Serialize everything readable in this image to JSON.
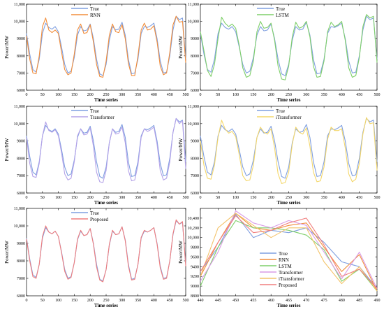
{
  "panels": [
    {
      "type": "line",
      "xlabel": "Time series",
      "ylabel": "Power/MW",
      "xlim": [
        0,
        500
      ],
      "ylim": [
        6000,
        11000
      ],
      "xticks": [
        "0",
        "50",
        "100",
        "150",
        "200",
        "250",
        "300",
        "350",
        "400",
        "450",
        "500"
      ],
      "yticks": [
        "6000",
        "7000",
        "8000",
        "9000",
        "10,000",
        "11,000"
      ],
      "legend": "top-center",
      "series": [
        {
          "name": "True",
          "color": "#7f9fe0",
          "src": "true"
        },
        {
          "name": "RNN",
          "color": "#f28e3c",
          "src": "rnn"
        }
      ]
    },
    {
      "type": "line",
      "xlabel": "Time series",
      "ylabel": "Power/MW",
      "xlim": [
        0,
        500
      ],
      "ylim": [
        6000,
        11000
      ],
      "xticks": [
        "0",
        "50",
        "100",
        "150",
        "200",
        "250",
        "300",
        "350",
        "400",
        "450",
        "500"
      ],
      "yticks": [
        "6000",
        "7000",
        "8000",
        "9000",
        "10,000",
        "11,000"
      ],
      "legend": "top-center",
      "series": [
        {
          "name": "True",
          "color": "#7f9fe0",
          "src": "true"
        },
        {
          "name": "LSTM",
          "color": "#7fcf6a",
          "src": "lstm"
        }
      ]
    },
    {
      "type": "line",
      "xlabel": "Time series",
      "ylabel": "Power/MW",
      "xlim": [
        0,
        500
      ],
      "ylim": [
        6000,
        11000
      ],
      "xticks": [
        "0",
        "50",
        "100",
        "150",
        "200",
        "250",
        "300",
        "350",
        "400",
        "450",
        "500"
      ],
      "yticks": [
        "6000",
        "7000",
        "8000",
        "9000",
        "10,000",
        "11,000"
      ],
      "legend": "top-center",
      "series": [
        {
          "name": "True",
          "color": "#7f9fe0",
          "src": "true"
        },
        {
          "name": "Transformer",
          "color": "#b4a2e8",
          "src": "transformer"
        }
      ]
    },
    {
      "type": "line",
      "xlabel": "Time series",
      "ylabel": "Power/MW",
      "xlim": [
        0,
        500
      ],
      "ylim": [
        6000,
        11000
      ],
      "xticks": [
        "0",
        "50",
        "100",
        "150",
        "200",
        "250",
        "300",
        "350",
        "400",
        "450",
        "500"
      ],
      "yticks": [
        "6000",
        "7000",
        "8000",
        "9000",
        "10,000",
        "11,000"
      ],
      "legend": "top-center",
      "series": [
        {
          "name": "True",
          "color": "#7f9fe0",
          "src": "true"
        },
        {
          "name": "iTransformer",
          "color": "#f4d76a",
          "src": "itransformer"
        }
      ]
    },
    {
      "type": "line",
      "xlabel": "Time series",
      "ylabel": "Power/MW",
      "xlim": [
        0,
        500
      ],
      "ylim": [
        6000,
        11000
      ],
      "xticks": [
        "0",
        "50",
        "100",
        "150",
        "200",
        "250",
        "300",
        "350",
        "400",
        "450",
        "500"
      ],
      "yticks": [
        "6000",
        "7000",
        "8000",
        "9000",
        "10,000",
        "11,000"
      ],
      "legend": "top-center",
      "series": [
        {
          "name": "True",
          "color": "#7f9fe0",
          "src": "true"
        },
        {
          "name": "Proposed",
          "color": "#f07e7e",
          "src": "proposed"
        }
      ]
    },
    {
      "type": "line",
      "xlabel": "Time series",
      "ylabel": "Power/MW",
      "xlim": [
        440,
        490
      ],
      "ylim": [
        8800,
        10600
      ],
      "xticks": [
        "440",
        "445",
        "450",
        "455",
        "460",
        "465",
        "470",
        "475",
        "480",
        "485",
        "490"
      ],
      "yticks": [
        "8800",
        "9000",
        "9200",
        "9400",
        "9600",
        "9800",
        "10,000",
        "10,200",
        "10,400"
      ],
      "legend": "bottom-center",
      "series": [
        {
          "name": "True",
          "color": "#7f9fe0",
          "src": "z_true"
        },
        {
          "name": "RNN",
          "color": "#f28e3c",
          "src": "z_rnn"
        },
        {
          "name": "LSTM",
          "color": "#7fcf6a",
          "src": "z_lstm"
        },
        {
          "name": "Transformer",
          "color": "#d89be6",
          "src": "z_transformer"
        },
        {
          "name": "iTransformer",
          "color": "#f4c36a",
          "src": "z_itransformer"
        },
        {
          "name": "Proposed",
          "color": "#f07e7e",
          "src": "z_proposed"
        }
      ]
    }
  ],
  "chart_data": {
    "type": "line",
    "x_step": 10,
    "zoom_x": [
      440,
      445,
      450,
      455,
      460,
      465,
      470,
      475,
      480,
      485,
      490
    ],
    "true": [
      9300,
      8100,
      7200,
      7050,
      7800,
      9300,
      9900,
      9650,
      9550,
      9700,
      9400,
      8500,
      7500,
      7000,
      7100,
      7900,
      9200,
      9700,
      9450,
      9500,
      9850,
      9000,
      7800,
      6950,
      6850,
      7500,
      8900,
      9700,
      9500,
      9550,
      9950,
      9200,
      7800,
      6950,
      7000,
      7800,
      9300,
      9700,
      9650,
      9750,
      9900,
      9000,
      7700,
      7000,
      7050,
      8000,
      9500,
      10300,
      10100,
      10200,
      7800
    ],
    "rnn": [
      9150,
      7800,
      7000,
      6950,
      8000,
      9700,
      10200,
      9500,
      9350,
      9500,
      9300,
      8200,
      7200,
      6900,
      7000,
      8100,
      9500,
      9850,
      9300,
      9350,
      9800,
      8800,
      7500,
      6800,
      6750,
      7700,
      9200,
      9850,
      9400,
      9350,
      9800,
      9000,
      7550,
      6850,
      6850,
      8000,
      9500,
      9900,
      9500,
      9550,
      9750,
      8800,
      7400,
      6900,
      7000,
      8200,
      9800,
      10300,
      9950,
      10000,
      7600
    ],
    "lstm": [
      9400,
      8300,
      7150,
      6800,
      7500,
      9000,
      10250,
      9900,
      9700,
      9850,
      9600,
      8600,
      7300,
      6750,
      6850,
      7700,
      9400,
      10000,
      9600,
      9650,
      9900,
      8900,
      7400,
      6650,
      6600,
      7400,
      9100,
      9950,
      9600,
      9700,
      10000,
      9100,
      7400,
      6750,
      6800,
      7700,
      9400,
      9950,
      9700,
      9800,
      10000,
      8900,
      7300,
      6750,
      6850,
      7900,
      9700,
      10400,
      10200,
      10300,
      7600
    ],
    "transformer": [
      9200,
      7700,
      6950,
      6900,
      7700,
      9300,
      10100,
      9600,
      9500,
      9650,
      9300,
      8300,
      7100,
      6750,
      6850,
      7800,
      9300,
      9700,
      9350,
      9400,
      9750,
      8700,
      7200,
      6650,
      6600,
      7300,
      8900,
      9700,
      9400,
      9450,
      9800,
      8900,
      7300,
      6700,
      6750,
      7600,
      9200,
      9700,
      9550,
      9650,
      9800,
      8800,
      7300,
      6750,
      6850,
      7800,
      9500,
      10300,
      10000,
      10150,
      7400
    ],
    "itransformer": [
      9000,
      7600,
      6850,
      6800,
      7600,
      9200,
      10200,
      9700,
      9450,
      9550,
      9250,
      8200,
      7000,
      6700,
      6750,
      7600,
      9200,
      9800,
      9500,
      9400,
      9700,
      8600,
      7100,
      6550,
      6600,
      7200,
      8800,
      9800,
      9500,
      9400,
      9750,
      8700,
      7200,
      6650,
      6700,
      7500,
      9100,
      9800,
      9600,
      9600,
      9700,
      8600,
      7100,
      6650,
      6800,
      7700,
      9400,
      10350,
      10000,
      10050,
      7300
    ],
    "proposed": [
      9250,
      8000,
      7100,
      7000,
      7800,
      9400,
      10000,
      9650,
      9550,
      9700,
      9400,
      8450,
      7400,
      6950,
      7050,
      7900,
      9250,
      9750,
      9450,
      9500,
      9850,
      8950,
      7650,
      6900,
      6800,
      7500,
      8950,
      9750,
      9500,
      9550,
      9950,
      9150,
      7700,
      6900,
      6950,
      7800,
      9350,
      9750,
      9650,
      9750,
      9900,
      8950,
      7600,
      6950,
      7000,
      8000,
      9550,
      10350,
      10100,
      10250,
      7700
    ],
    "z_true": [
      9300,
      9800,
      10480,
      10000,
      10150,
      10100,
      10200,
      9900,
      9500,
      9400,
      8950
    ],
    "z_rnn": [
      9200,
      9900,
      10500,
      10200,
      10150,
      10250,
      10300,
      9800,
      9300,
      9650,
      8900
    ],
    "z_lstm": [
      9000,
      9800,
      10350,
      10200,
      10200,
      10150,
      10050,
      9750,
      9100,
      9350,
      8900
    ],
    "z_transformer": [
      9100,
      9700,
      10550,
      10300,
      10200,
      10350,
      10250,
      9700,
      9150,
      9700,
      8950
    ],
    "z_itransformer": [
      9200,
      10200,
      10500,
      10250,
      10000,
      10200,
      10200,
      9500,
      9050,
      9400,
      8900
    ],
    "z_proposed": [
      9300,
      9900,
      10450,
      10100,
      10150,
      10300,
      10400,
      9850,
      9200,
      9350,
      8950
    ]
  }
}
